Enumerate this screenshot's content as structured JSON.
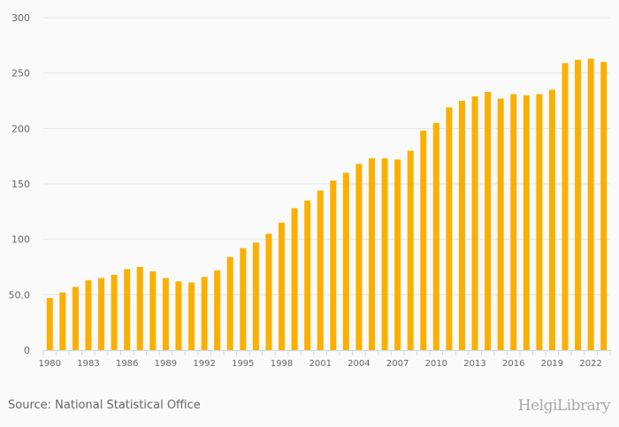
{
  "chart_data": {
    "type": "bar",
    "categories": [
      "1980",
      "1981",
      "1982",
      "1983",
      "1984",
      "1985",
      "1986",
      "1987",
      "1988",
      "1989",
      "1990",
      "1991",
      "1992",
      "1993",
      "1994",
      "1995",
      "1996",
      "1997",
      "1998",
      "1999",
      "2000",
      "2001",
      "2002",
      "2003",
      "2004",
      "2005",
      "2006",
      "2007",
      "2008",
      "2009",
      "2010",
      "2011",
      "2012",
      "2013",
      "2014",
      "2015",
      "2016",
      "2017",
      "2018",
      "2019",
      "2020",
      "2021",
      "2022",
      "2023"
    ],
    "values": [
      47,
      52,
      57,
      63,
      65,
      68,
      73,
      75,
      71,
      65,
      62,
      61,
      66,
      72,
      84,
      92,
      97,
      105,
      115,
      128,
      135,
      144,
      153,
      160,
      168,
      173,
      173,
      172,
      180,
      198,
      205,
      219,
      225,
      229,
      233,
      227,
      231,
      230,
      231,
      235,
      259,
      262,
      263,
      260
    ],
    "x_tick_labels": [
      "1980",
      "1983",
      "1986",
      "1989",
      "1992",
      "1995",
      "1998",
      "2001",
      "2004",
      "2007",
      "2010",
      "2013",
      "2016",
      "2019",
      "2022"
    ],
    "y_tick_labels": [
      "0",
      "50.0",
      "100",
      "150",
      "200",
      "250",
      "300"
    ],
    "y_ticks": [
      0,
      50,
      100,
      150,
      200,
      250,
      300
    ],
    "ylim": [
      0,
      300
    ],
    "grid": true,
    "bar_color": "#fbb000"
  },
  "footer": {
    "source": "Source: National Statistical Office",
    "logo": "HelgiLibrary"
  }
}
